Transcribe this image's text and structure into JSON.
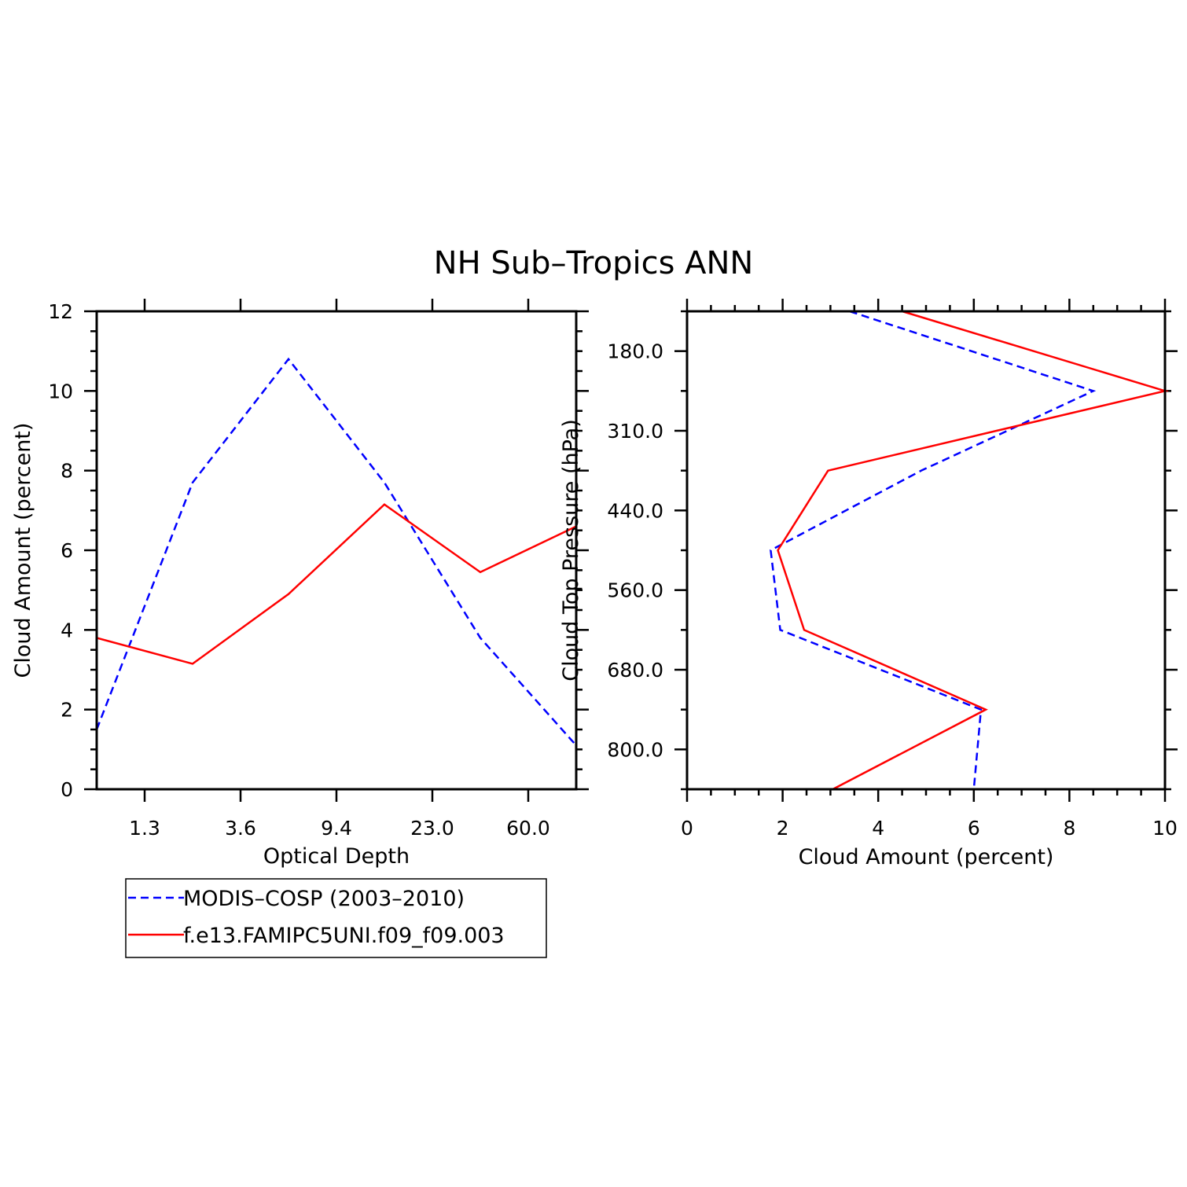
{
  "figure": {
    "title": "NH Sub–Tropics ANN"
  },
  "chart_data": [
    {
      "type": "line",
      "xlabel": "Optical Depth",
      "ylabel": "Cloud Amount (percent)",
      "x": [
        1,
        2,
        3,
        4,
        5,
        6
      ],
      "xlim": [
        0.5,
        5.5
      ],
      "ylim": [
        0,
        12
      ],
      "x_tick_labels": [
        "1.3",
        "3.6",
        "9.4",
        "23.0",
        "60.0"
      ],
      "y_tick_labels": [
        "0",
        "2",
        "4",
        "6",
        "8",
        "10",
        "12"
      ],
      "series": [
        {
          "name": "MODIS–COSP (2003–2010)",
          "color": "#0000ff",
          "dash": true,
          "values": [
            1.5,
            7.7,
            10.8,
            7.7,
            3.8,
            1.1
          ]
        },
        {
          "name": "f.e13.FAMIPC5UNI.f09_f09.003",
          "color": "#ff0000",
          "dash": false,
          "values": [
            3.8,
            3.15,
            4.9,
            7.15,
            5.45,
            6.6
          ]
        }
      ],
      "grid": false,
      "legend": "below"
    },
    {
      "type": "line",
      "xlabel": "Cloud Amount (percent)",
      "ylabel": "Cloud Top Pressure (hPa)",
      "x_tick_labels": [
        "0",
        "2",
        "4",
        "6",
        "8",
        "10"
      ],
      "xlim": [
        0,
        10
      ],
      "y_tick_labels": [
        "180.0",
        "310.0",
        "440.0",
        "560.0",
        "680.0",
        "800.0"
      ],
      "pressure_levels": [
        1,
        2,
        3,
        4,
        5,
        6,
        7
      ],
      "ylim": [
        0.5,
        6.5
      ],
      "series": [
        {
          "name": "MODIS–COSP (2003–2010)",
          "color": "#0000ff",
          "dash": true,
          "values": [
            3.4,
            8.5,
            4.9,
            1.75,
            1.95,
            6.15,
            6.0
          ]
        },
        {
          "name": "f.e13.FAMIPC5UNI.f09_f09.003",
          "color": "#ff0000",
          "dash": false,
          "values": [
            4.5,
            10.0,
            2.95,
            1.9,
            2.45,
            6.25,
            3.05
          ]
        }
      ],
      "grid": false
    }
  ]
}
